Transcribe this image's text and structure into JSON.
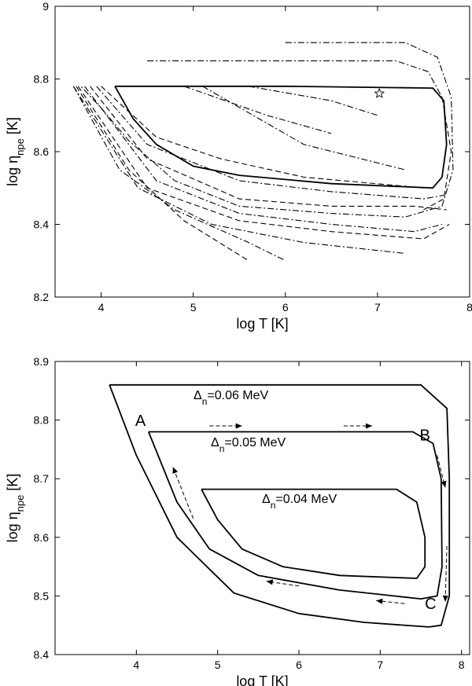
{
  "chart_data": [
    {
      "type": "line",
      "title": "",
      "xlabel": "log T [K]",
      "ylabel": "log η",
      "ylabel_sub": "npe",
      "ylabel_unit": " [K]",
      "xlim": [
        3.5,
        8
      ],
      "ylim": [
        8.2,
        9
      ],
      "xticks": [
        "4",
        "5",
        "6",
        "7",
        "8"
      ],
      "yticks": [
        "8.2",
        "8.4",
        "8.6",
        "8.8",
        "9"
      ],
      "grid": false,
      "marker": {
        "shape": "star",
        "x": 7.02,
        "y": 8.76
      },
      "series": [
        {
          "style": "solid",
          "points": [
            [
              4.15,
              8.78
            ],
            [
              6.0,
              8.78
            ],
            [
              7.6,
              8.775
            ],
            [
              7.72,
              8.74
            ],
            [
              7.75,
              8.62
            ],
            [
              7.7,
              8.53
            ],
            [
              7.6,
              8.5
            ],
            [
              6.5,
              8.512
            ],
            [
              5.5,
              8.535
            ],
            [
              5.0,
              8.56
            ],
            [
              4.6,
              8.62
            ],
            [
              4.35,
              8.69
            ],
            [
              4.15,
              8.78
            ]
          ]
        },
        {
          "style": "dashdot",
          "points": [
            [
              6.0,
              8.9
            ],
            [
              7.3,
              8.9
            ],
            [
              7.65,
              8.86
            ],
            [
              7.8,
              8.75
            ],
            [
              7.82,
              8.55
            ],
            [
              7.7,
              8.45
            ],
            [
              7.3,
              8.42
            ],
            [
              6.5,
              8.43
            ],
            [
              5.5,
              8.45
            ],
            [
              4.8,
              8.52
            ],
            [
              4.3,
              8.63
            ],
            [
              4.0,
              8.72
            ],
            [
              3.78,
              8.78
            ]
          ]
        },
        {
          "style": "dashdot",
          "points": [
            [
              4.5,
              8.85
            ],
            [
              7.2,
              8.85
            ],
            [
              7.55,
              8.82
            ],
            [
              7.72,
              8.74
            ]
          ]
        },
        {
          "style": "dashed",
          "points": [
            [
              7.7,
              8.75
            ],
            [
              7.8,
              8.6
            ],
            [
              7.72,
              8.47
            ],
            [
              7.5,
              8.44
            ]
          ]
        },
        {
          "style": "dashdot",
          "points": [
            [
              5.6,
              8.78
            ],
            [
              6.5,
              8.74
            ],
            [
              7.0,
              8.7
            ]
          ]
        },
        {
          "style": "dashdot",
          "points": [
            [
              4.9,
              8.78
            ],
            [
              5.8,
              8.7
            ],
            [
              6.5,
              8.65
            ]
          ]
        },
        {
          "style": "dashdot",
          "points": [
            [
              5.1,
              8.78
            ],
            [
              6.2,
              8.62
            ],
            [
              7.3,
              8.55
            ]
          ]
        },
        {
          "style": "dashed",
          "points": [
            [
              4.0,
              8.78
            ],
            [
              4.6,
              8.64
            ],
            [
              5.3,
              8.58
            ],
            [
              6.2,
              8.53
            ],
            [
              7.5,
              8.5
            ]
          ]
        },
        {
          "style": "dashdot",
          "points": [
            [
              3.95,
              8.78
            ],
            [
              4.5,
              8.62
            ],
            [
              5.5,
              8.52
            ],
            [
              6.5,
              8.49
            ],
            [
              7.5,
              8.47
            ],
            [
              7.72,
              8.48
            ]
          ]
        },
        {
          "style": "dashed",
          "points": [
            [
              3.88,
              8.78
            ],
            [
              4.5,
              8.58
            ],
            [
              5.5,
              8.47
            ],
            [
              6.5,
              8.45
            ],
            [
              7.4,
              8.45
            ],
            [
              7.75,
              8.44
            ]
          ]
        },
        {
          "style": "dashdot",
          "points": [
            [
              3.82,
              8.78
            ],
            [
              4.6,
              8.52
            ],
            [
              5.5,
              8.43
            ],
            [
              6.5,
              8.4
            ],
            [
              7.4,
              8.38
            ],
            [
              7.7,
              8.4
            ]
          ]
        },
        {
          "style": "dashed",
          "points": [
            [
              3.75,
              8.78
            ],
            [
              4.5,
              8.5
            ],
            [
              5.5,
              8.41
            ],
            [
              6.5,
              8.38
            ],
            [
              7.5,
              8.36
            ],
            [
              7.78,
              8.4
            ]
          ]
        },
        {
          "style": "dashdot",
          "points": [
            [
              3.7,
              8.78
            ],
            [
              4.4,
              8.5
            ],
            [
              5.2,
              8.4
            ],
            [
              6.2,
              8.35
            ],
            [
              7.3,
              8.32
            ]
          ]
        },
        {
          "style": "dashed",
          "points": [
            [
              3.73,
              8.78
            ],
            [
              4.3,
              8.55
            ],
            [
              4.9,
              8.41
            ],
            [
              5.6,
              8.3
            ]
          ]
        },
        {
          "style": "dashdot",
          "points": [
            [
              3.7,
              8.78
            ],
            [
              4.2,
              8.55
            ],
            [
              4.8,
              8.44
            ],
            [
              5.6,
              8.35
            ],
            [
              6.0,
              8.3
            ]
          ]
        }
      ]
    },
    {
      "type": "line",
      "title": "",
      "xlabel": "log T [K]",
      "ylabel": "log η",
      "ylabel_sub": "npe",
      "ylabel_unit": " [K]",
      "xlim": [
        3,
        8.1
      ],
      "ylim": [
        8.4,
        8.9
      ],
      "xticks": [
        "4",
        "5",
        "6",
        "7",
        "8"
      ],
      "yticks": [
        "8.4",
        "8.5",
        "8.6",
        "8.7",
        "8.8",
        "8.9"
      ],
      "grid": false,
      "series": [
        {
          "name": "Δn=0.06 MeV",
          "style": "solid",
          "points": [
            [
              3.67,
              8.86
            ],
            [
              7.5,
              8.86
            ],
            [
              7.82,
              8.82
            ],
            [
              7.85,
              8.7
            ],
            [
              7.85,
              8.5
            ],
            [
              7.75,
              8.45
            ],
            [
              7.6,
              8.447
            ],
            [
              6.8,
              8.455
            ],
            [
              6.0,
              8.47
            ],
            [
              5.2,
              8.505
            ],
            [
              4.5,
              8.6
            ],
            [
              4.0,
              8.74
            ],
            [
              3.67,
              8.86
            ]
          ]
        },
        {
          "name": "Δn=0.05 MeV",
          "style": "solid",
          "points": [
            [
              4.15,
              8.78
            ],
            [
              7.4,
              8.78
            ],
            [
              7.65,
              8.76
            ],
            [
              7.75,
              8.7
            ],
            [
              7.76,
              8.55
            ],
            [
              7.7,
              8.5
            ],
            [
              7.5,
              8.495
            ],
            [
              6.5,
              8.51
            ],
            [
              5.5,
              8.535
            ],
            [
              4.9,
              8.58
            ],
            [
              4.5,
              8.66
            ],
            [
              4.15,
              8.78
            ]
          ]
        },
        {
          "name": "Δn=0.04 MeV",
          "style": "solid",
          "points": [
            [
              4.8,
              8.682
            ],
            [
              7.2,
              8.682
            ],
            [
              7.45,
              8.66
            ],
            [
              7.55,
              8.6
            ],
            [
              7.55,
              8.55
            ],
            [
              7.45,
              8.53
            ],
            [
              6.5,
              8.535
            ],
            [
              5.8,
              8.55
            ],
            [
              5.3,
              8.58
            ],
            [
              5.0,
              8.63
            ],
            [
              4.8,
              8.682
            ]
          ]
        }
      ],
      "labels": [
        {
          "text": "Δ",
          "sub": "n",
          "rest": "=0.06 MeV"
        },
        {
          "text": "Δ",
          "sub": "n",
          "rest": "=0.05 MeV"
        },
        {
          "text": "Δ",
          "sub": "n",
          "rest": "=0.04 MeV"
        }
      ],
      "points": [
        {
          "text": "A",
          "x": 4.05,
          "y": 8.79
        },
        {
          "text": "B",
          "x": 7.55,
          "y": 8.765
        },
        {
          "text": "C",
          "x": 7.62,
          "y": 8.478
        }
      ],
      "arrows": [
        {
          "from": [
            4.9,
            8.79
          ],
          "to": [
            5.3,
            8.79
          ]
        },
        {
          "from": [
            6.55,
            8.79
          ],
          "to": [
            6.9,
            8.79
          ]
        },
        {
          "from": [
            7.7,
            8.74
          ],
          "to": [
            7.8,
            8.685
          ]
        },
        {
          "from": [
            7.82,
            8.585
          ],
          "to": [
            7.8,
            8.49
          ]
        },
        {
          "from": [
            7.3,
            8.487
          ],
          "to": [
            6.95,
            8.492
          ]
        },
        {
          "from": [
            6.0,
            8.517
          ],
          "to": [
            5.6,
            8.525
          ]
        },
        {
          "from": [
            4.7,
            8.632
          ],
          "to": [
            4.45,
            8.72
          ]
        }
      ]
    }
  ]
}
